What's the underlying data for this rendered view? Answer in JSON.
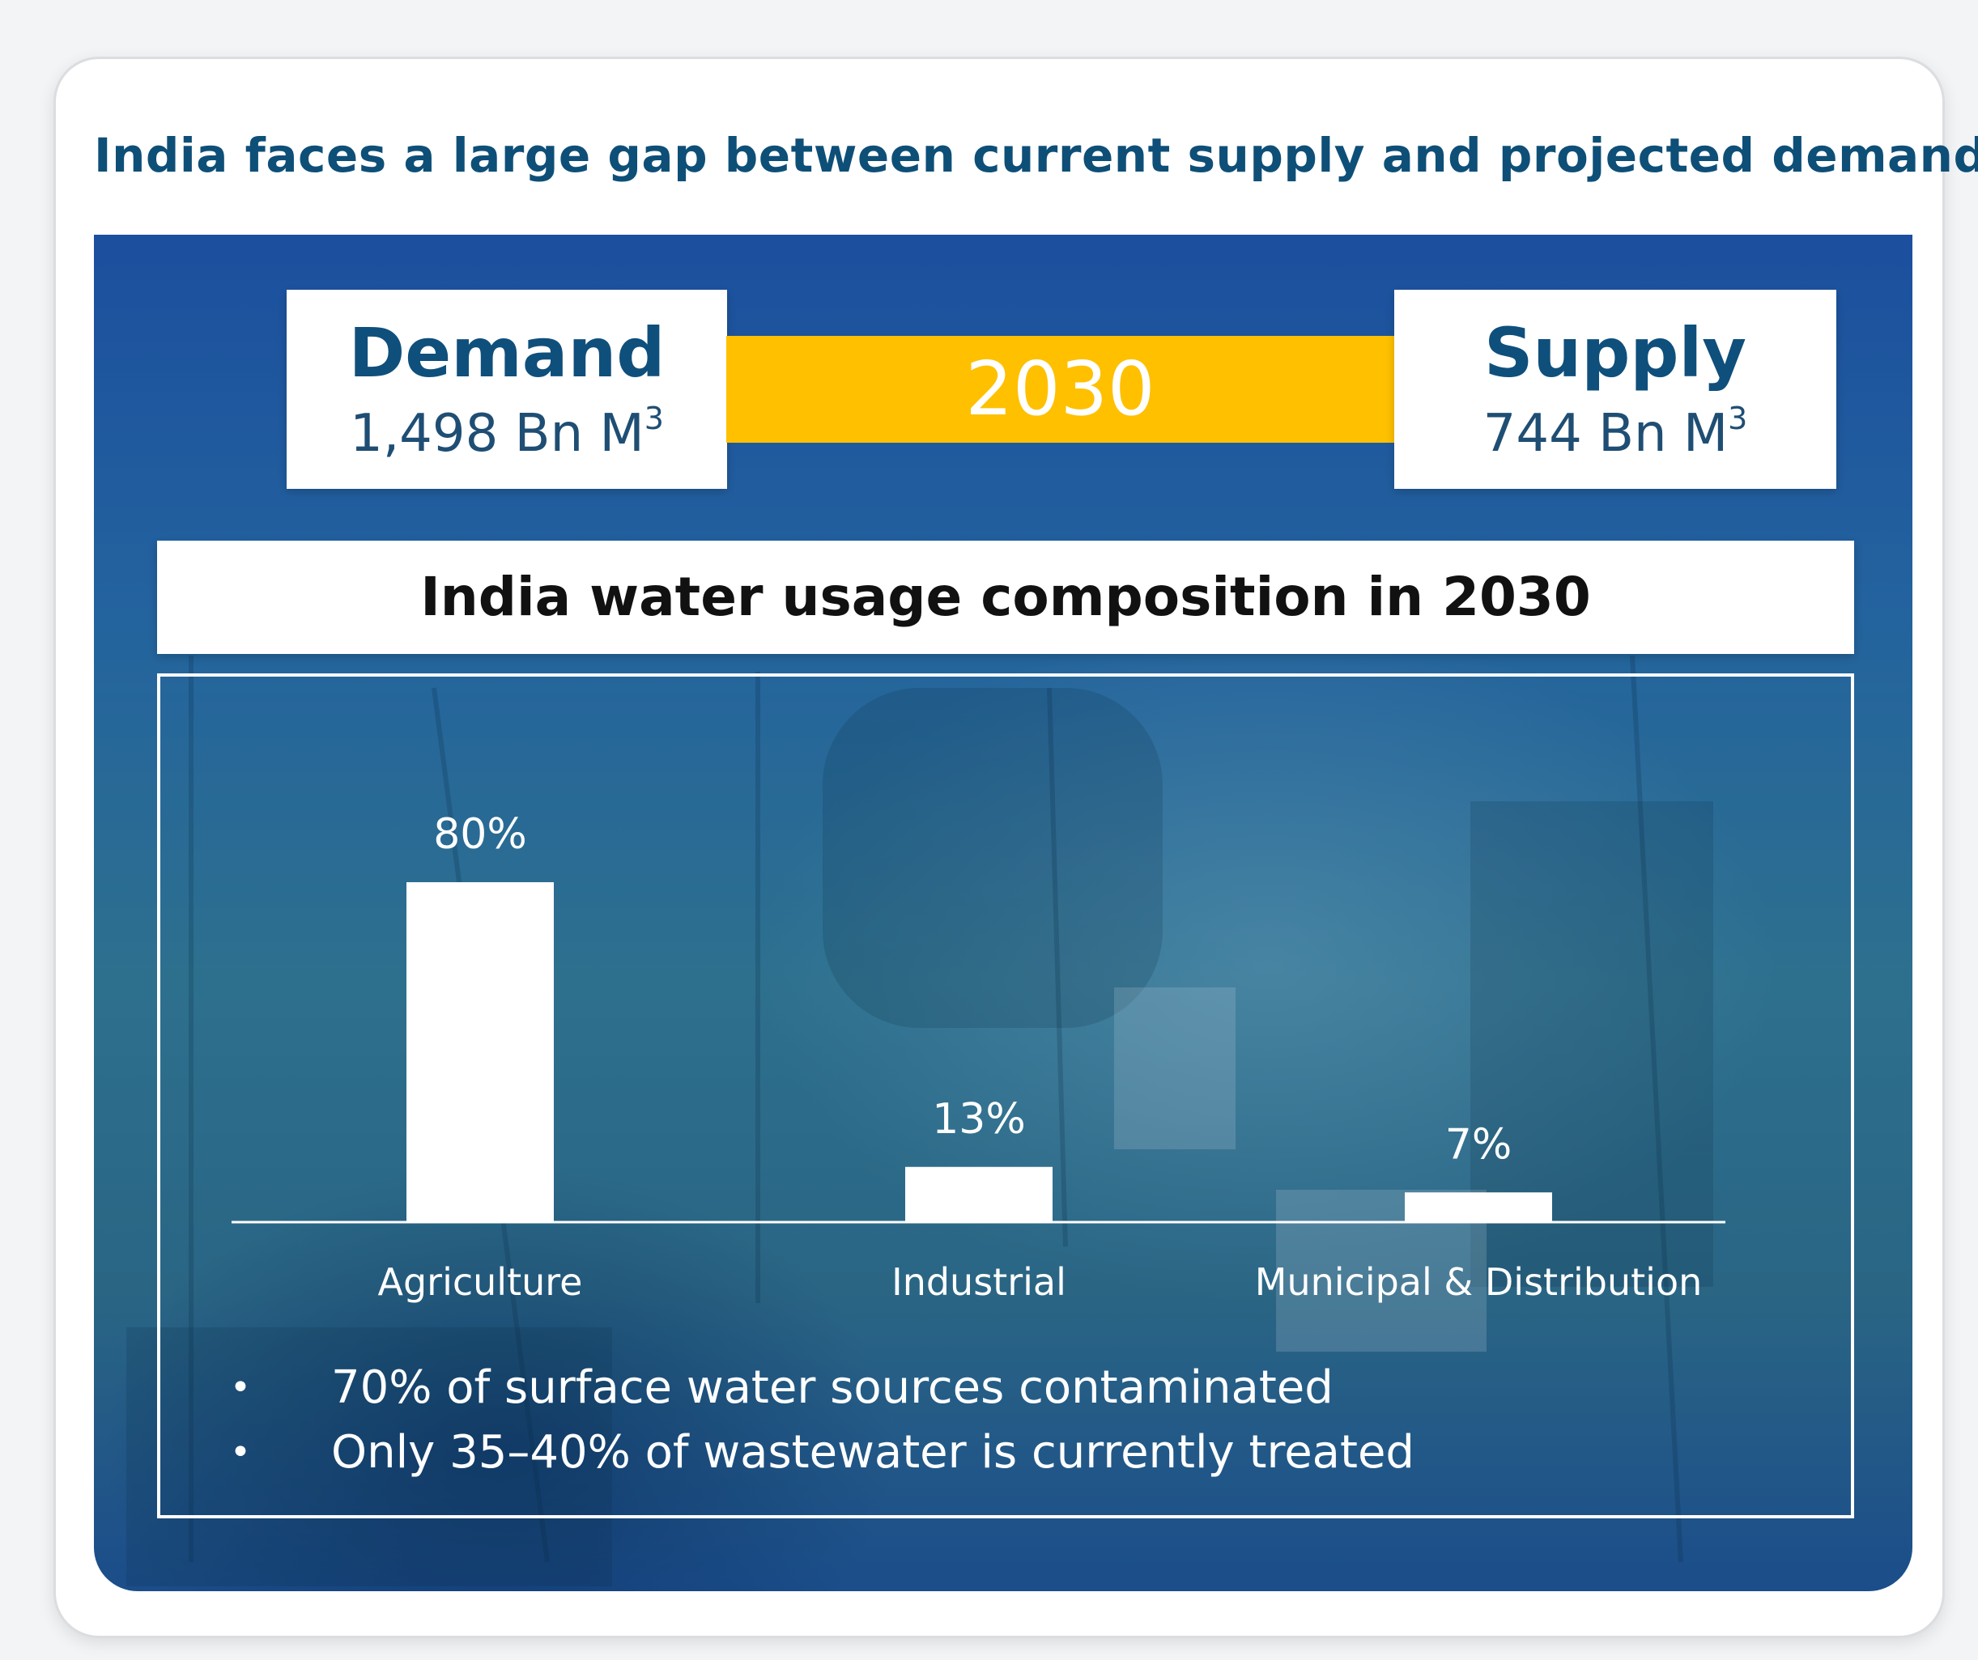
{
  "headline": "India faces a large gap between current supply and projected demand",
  "demand": {
    "title": "Demand",
    "value": "1,498 Bn M",
    "unit_sup": "3"
  },
  "supply": {
    "title": "Supply",
    "value": "744 Bn M",
    "unit_sup": "3"
  },
  "year": "2030",
  "bullets": [
    "70% of surface water sources contaminated",
    "Only 35–40% of wastewater is currently treated"
  ],
  "colors": {
    "headline": "#0e4f78",
    "accent_year_bar": "#ffc000",
    "bars": "#ffffff",
    "panel_blue": "#1c4f9e"
  },
  "chart_data": {
    "type": "bar",
    "title": "India water usage composition in 2030",
    "categories": [
      "Agriculture",
      "Industrial",
      "Municipal & Distribution"
    ],
    "values": [
      80,
      13,
      7
    ],
    "data_labels": [
      "80%",
      "13%",
      "7%"
    ],
    "xlabel": "",
    "ylabel": "",
    "ylim": [
      0,
      100
    ],
    "grid": false,
    "legend": "none"
  }
}
